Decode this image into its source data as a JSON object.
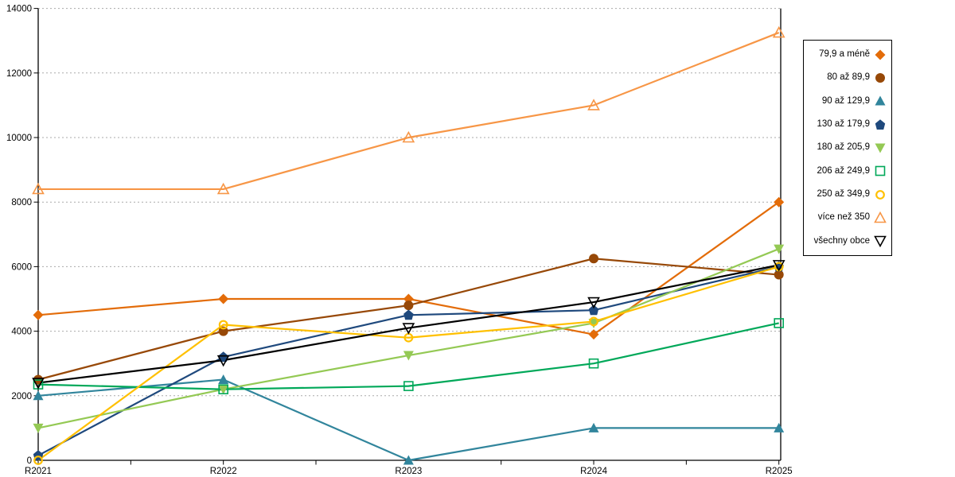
{
  "chart_data": {
    "type": "line",
    "title": "",
    "xlabel": "",
    "ylabel": "",
    "categories": [
      "R2021",
      "R2022",
      "R2023",
      "R2024",
      "R2025"
    ],
    "y_ticks": [
      0,
      2000,
      4000,
      6000,
      8000,
      10000,
      12000,
      14000
    ],
    "ylim": [
      0,
      14000
    ],
    "grid": "horizontal-dotted",
    "legend_position": "right",
    "series": [
      {
        "name": "79,9 a méně",
        "color": "#E36C09",
        "marker": "diamond",
        "filled": true,
        "values": [
          4500,
          5000,
          5000,
          3900,
          8000
        ]
      },
      {
        "name": "80 až 89,9",
        "color": "#974807",
        "marker": "circle",
        "filled": true,
        "values": [
          2500,
          4000,
          4800,
          6250,
          5750
        ]
      },
      {
        "name": "90 až 129,9",
        "color": "#31859C",
        "marker": "triangle-up",
        "filled": true,
        "values": [
          2000,
          2500,
          0,
          1000,
          1000
        ]
      },
      {
        "name": "130 až 179,9",
        "color": "#1F497D",
        "marker": "pentagon",
        "filled": true,
        "values": [
          150,
          3200,
          4500,
          4650,
          6000
        ]
      },
      {
        "name": "180 až 205,9",
        "color": "#94C954",
        "marker": "triangle-down",
        "filled": true,
        "values": [
          1000,
          2200,
          3250,
          4250,
          6550
        ]
      },
      {
        "name": "206 až 249,9",
        "color": "#00A859",
        "marker": "square",
        "filled": false,
        "values": [
          2350,
          2200,
          2300,
          3000,
          4250
        ]
      },
      {
        "name": "250 až 349,9",
        "color": "#FFC000",
        "marker": "circle",
        "filled": false,
        "values": [
          0,
          4200,
          3800,
          4300,
          6000
        ]
      },
      {
        "name": "více než 350",
        "color": "#F79646",
        "marker": "triangle-up",
        "filled": false,
        "values": [
          8400,
          8400,
          10000,
          11000,
          13250
        ]
      },
      {
        "name": "všechny obce",
        "color": "#000000",
        "marker": "triangle-down",
        "filled": false,
        "values": [
          2400,
          3100,
          4100,
          4900,
          6050
        ]
      }
    ],
    "colors": {
      "gridline": "#AAAAAA",
      "axis": "#000000",
      "tick_label": "#000000",
      "background": "#FFFFFF"
    }
  }
}
